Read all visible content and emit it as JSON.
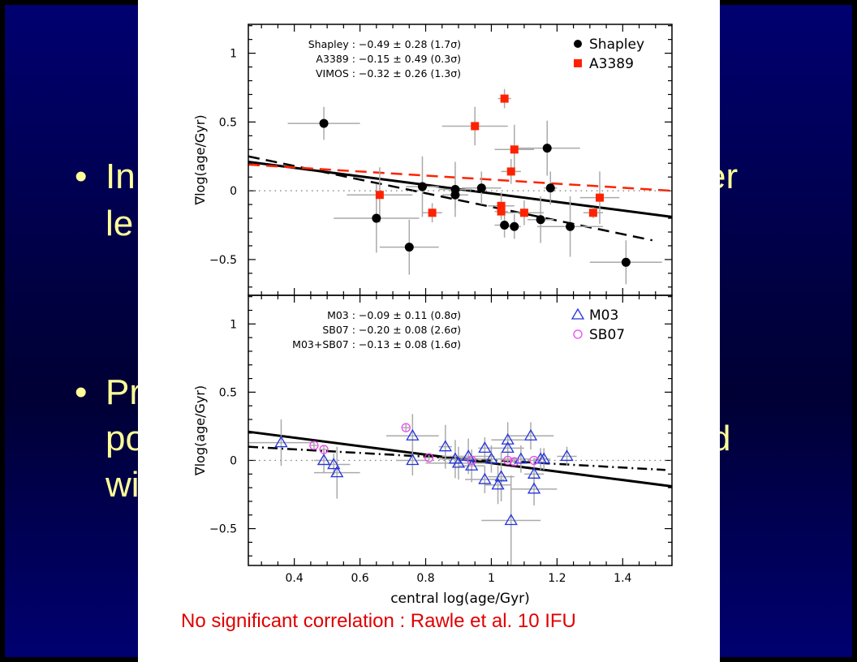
{
  "slide": {
    "fragments": [
      "•",
      "In",
      "le",
      "er",
      "•",
      "Pr",
      "po",
      "wi",
      "d"
    ],
    "caption": "No significant correlation : Rawle et al. 10 IFU",
    "text_color": "#ffff99",
    "caption_color": "#e00000"
  },
  "chart_data": [
    {
      "type": "scatter",
      "panel": "top",
      "xlabel": "central log(age/Gyr)",
      "ylabel": "∇log(age/Gyr)",
      "xlim": [
        0.26,
        1.55
      ],
      "ylim": [
        -0.76,
        1.21
      ],
      "xticks": [
        0.4,
        0.6,
        0.8,
        1.0,
        1.2,
        1.4
      ],
      "xtick_labels": [
        "0.4",
        "0.6",
        "0.8",
        "1",
        "1.2",
        "1.4"
      ],
      "yticks": [
        1,
        0.5,
        0,
        -0.5
      ],
      "ytick_labels": [
        "1",
        "0.5",
        "0",
        "−0.5"
      ],
      "stats": [
        "Shapley : −0.49 ± 0.28  (1.7σ)",
        "A3389 : −0.15 ± 0.49  (0.3σ)",
        "VIMOS : −0.32 ± 0.26  (1.3σ)"
      ],
      "legend": [
        {
          "name": "Shapley",
          "marker": "filled-circle",
          "color": "#000000"
        },
        {
          "name": "A3389",
          "marker": "filled-square",
          "color": "#ff2200"
        }
      ],
      "series": [
        {
          "name": "Shapley",
          "marker": "filled-circle",
          "color": "#000000",
          "points": [
            [
              0.49,
              0.49,
              0.11,
              0.12
            ],
            [
              0.65,
              -0.2,
              0.13,
              0.25
            ],
            [
              0.75,
              -0.41,
              0.09,
              0.2
            ],
            [
              0.79,
              0.03,
              0.05,
              0.22
            ],
            [
              0.89,
              0.01,
              0.05,
              0.2
            ],
            [
              0.89,
              -0.03,
              0.04,
              0.1
            ],
            [
              0.97,
              0.02,
              0.06,
              0.12
            ],
            [
              1.04,
              -0.25,
              0.03,
              0.09
            ],
            [
              1.07,
              -0.26,
              0.02,
              0.09
            ],
            [
              1.15,
              -0.21,
              0.04,
              0.17
            ],
            [
              1.17,
              0.31,
              0.1,
              0.2
            ],
            [
              1.18,
              0.02,
              0.02,
              0.12
            ],
            [
              1.24,
              -0.26,
              0.1,
              0.22
            ],
            [
              1.41,
              -0.52,
              0.11,
              0.16
            ]
          ]
        },
        {
          "name": "A3389",
          "marker": "filled-square",
          "color": "#ff2200",
          "points": [
            [
              0.66,
              -0.03,
              0.1,
              0.2
            ],
            [
              0.82,
              -0.16,
              0.03,
              0.07
            ],
            [
              0.95,
              0.47,
              0.1,
              0.14
            ],
            [
              1.04,
              0.67,
              0.02,
              0.07
            ],
            [
              1.07,
              0.3,
              0.06,
              0.18
            ],
            [
              1.06,
              0.14,
              0.03,
              0.09
            ],
            [
              1.03,
              -0.11,
              0.04,
              0.1
            ],
            [
              1.03,
              -0.15,
              0.02,
              0.04
            ],
            [
              1.1,
              -0.16,
              0.06,
              0.09
            ],
            [
              1.31,
              -0.16,
              0.03,
              0.04
            ],
            [
              1.33,
              -0.05,
              0.06,
              0.19
            ]
          ]
        }
      ],
      "fits": [
        {
          "name": "combined",
          "style": "solid",
          "color": "#000000",
          "x": [
            0.26,
            1.55
          ],
          "y": [
            0.21,
            -0.19
          ]
        },
        {
          "name": "Shapley",
          "style": "dashed",
          "color": "#000000",
          "x": [
            0.26,
            1.49
          ],
          "y": [
            0.25,
            -0.36
          ]
        },
        {
          "name": "A3389",
          "style": "dashed",
          "color": "#ff2200",
          "x": [
            0.26,
            1.55
          ],
          "y": [
            0.19,
            0.0
          ]
        },
        {
          "name": "zero",
          "style": "dotted",
          "color": "#777777",
          "x": [
            0.26,
            1.55
          ],
          "y": [
            0,
            0
          ]
        }
      ]
    },
    {
      "type": "scatter",
      "panel": "bottom",
      "xlabel": "central log(age/Gyr)",
      "ylabel": "∇log(age/Gyr)",
      "xlim": [
        0.26,
        1.55
      ],
      "ylim": [
        -0.77,
        1.21
      ],
      "xticks": [
        0.4,
        0.6,
        0.8,
        1.0,
        1.2,
        1.4
      ],
      "xtick_labels": [
        "0.4",
        "0.6",
        "0.8",
        "1",
        "1.2",
        "1.4"
      ],
      "yticks": [
        1,
        0.5,
        0,
        -0.5
      ],
      "ytick_labels": [
        "1",
        "0.5",
        "0",
        "−0.5"
      ],
      "stats": [
        "M03 : −0.09 ± 0.11  (0.8σ)",
        "SB07 : −0.20 ± 0.08  (2.6σ)",
        "M03+SB07 : −0.13 ± 0.08  (1.6σ)"
      ],
      "legend": [
        {
          "name": "M03",
          "marker": "open-triangle",
          "color": "#2233dd"
        },
        {
          "name": "SB07",
          "marker": "open-circle",
          "color": "#ee44ee"
        }
      ],
      "series": [
        {
          "name": "M03",
          "marker": "open-triangle",
          "color": "#2233dd",
          "points": [
            [
              0.36,
              0.13,
              0.1,
              0.17
            ],
            [
              0.49,
              0.0,
              0.03,
              0.09
            ],
            [
              0.52,
              -0.03,
              0.05,
              0.08
            ],
            [
              0.53,
              -0.09,
              0.07,
              0.19
            ],
            [
              0.76,
              0.18,
              0.08,
              0.16
            ],
            [
              0.76,
              0.0,
              0.05,
              0.11
            ],
            [
              0.86,
              0.1,
              0.02,
              0.16
            ],
            [
              0.89,
              0.01,
              0.05,
              0.14
            ],
            [
              0.9,
              -0.02,
              0.1,
              0.12
            ],
            [
              0.93,
              0.03,
              0.08,
              0.13
            ],
            [
              0.94,
              -0.04,
              0.04,
              0.12
            ],
            [
              0.98,
              0.09,
              0.02,
              0.08
            ],
            [
              0.98,
              -0.14,
              0.06,
              0.1
            ],
            [
              1.0,
              0.01,
              0.07,
              0.1
            ],
            [
              1.02,
              -0.18,
              0.04,
              0.14
            ],
            [
              1.03,
              -0.12,
              0.04,
              0.18
            ],
            [
              1.05,
              0.15,
              0.05,
              0.13
            ],
            [
              1.05,
              0.09,
              0.05,
              0.1
            ],
            [
              1.09,
              0.01,
              0.03,
              0.1
            ],
            [
              1.06,
              -0.44,
              0.09,
              0.33
            ],
            [
              1.12,
              0.18,
              0.07,
              0.1
            ],
            [
              1.13,
              -0.1,
              0.03,
              0.09
            ],
            [
              1.13,
              -0.21,
              0.07,
              0.12
            ],
            [
              1.15,
              0.01,
              0.02,
              0.08
            ],
            [
              1.16,
              0.01,
              0.02,
              0.08
            ],
            [
              1.23,
              0.03,
              0.03,
              0.07
            ]
          ]
        },
        {
          "name": "SB07",
          "marker": "open-circle",
          "color": "#ee44ee",
          "points": [
            [
              0.46,
              0.11,
              0.01,
              0.03
            ],
            [
              0.49,
              0.08,
              0.01,
              0.03
            ],
            [
              0.74,
              0.24,
              0.01,
              0.03
            ],
            [
              0.81,
              0.02,
              0.01,
              0.02
            ],
            [
              0.94,
              0.0,
              0.01,
              0.02
            ],
            [
              1.05,
              0.0,
              0.01,
              0.02
            ],
            [
              1.07,
              -0.01,
              0.01,
              0.02
            ],
            [
              1.13,
              0.0,
              0.01,
              0.02
            ]
          ]
        }
      ],
      "fits": [
        {
          "name": "combined",
          "style": "solid",
          "color": "#000000",
          "x": [
            0.26,
            1.55
          ],
          "y": [
            0.21,
            -0.19
          ]
        },
        {
          "name": "M03+SB07",
          "style": "dash-dot",
          "color": "#000000",
          "x": [
            0.26,
            1.53
          ],
          "y": [
            0.1,
            -0.07
          ]
        },
        {
          "name": "zero",
          "style": "dotted",
          "color": "#777777",
          "x": [
            0.26,
            1.55
          ],
          "y": [
            0,
            0
          ]
        }
      ]
    }
  ]
}
